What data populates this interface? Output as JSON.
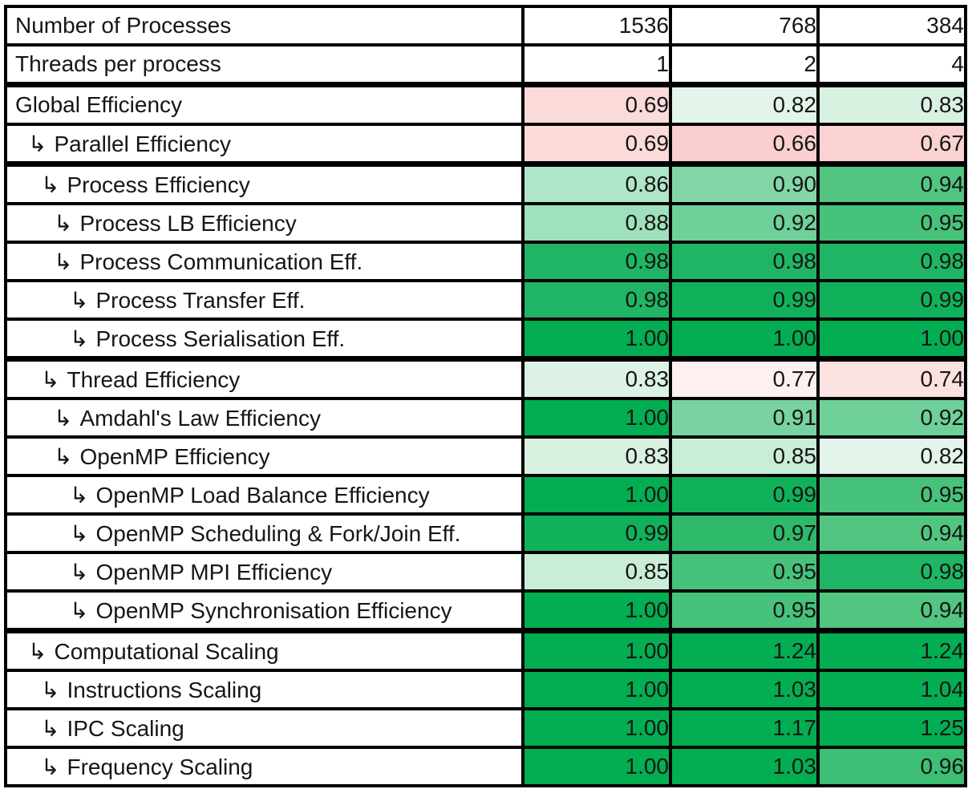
{
  "table": {
    "header_rows": [
      {
        "label": "Number of Processes",
        "values": [
          "1536",
          "768",
          "384"
        ]
      },
      {
        "label": "Threads per process",
        "values": [
          "1",
          "2",
          "4"
        ]
      }
    ],
    "arrow_glyph": "↳",
    "rows": [
      {
        "label": "Global Efficiency",
        "level": 0,
        "arrow": false,
        "blue": true,
        "thick_top": true,
        "values": [
          "0.69",
          "0.82",
          "0.83"
        ],
        "colors": [
          "#FBDADA",
          "#E3F4EA",
          "#D8F1E1"
        ]
      },
      {
        "label": "Parallel Efficiency",
        "level": 1,
        "arrow": true,
        "blue": false,
        "thick_top": false,
        "values": [
          "0.69",
          "0.66",
          "0.67"
        ],
        "colors": [
          "#FBDADA",
          "#FBCFCF",
          "#FBD2D2"
        ]
      },
      {
        "label": "Process Efficiency",
        "level": 2,
        "arrow": true,
        "blue": false,
        "thick_top": true,
        "values": [
          "0.86",
          "0.90",
          "0.94"
        ],
        "colors": [
          "#AFE5C8",
          "#83D7A6",
          "#52C581"
        ]
      },
      {
        "label": "Process LB Efficiency",
        "level": 3,
        "arrow": true,
        "blue": false,
        "thick_top": false,
        "values": [
          "0.88",
          "0.92",
          "0.95"
        ],
        "colors": [
          "#9FE0BD",
          "#6FD099",
          "#47C27B"
        ]
      },
      {
        "label": "Process Communication Eff.",
        "level": 3,
        "arrow": true,
        "blue": false,
        "thick_top": false,
        "values": [
          "0.98",
          "0.98",
          "0.98"
        ],
        "colors": [
          "#1FB564",
          "#1FB564",
          "#1FB564"
        ]
      },
      {
        "label": "Process Transfer Eff.",
        "level": 4,
        "arrow": true,
        "blue": false,
        "thick_top": false,
        "values": [
          "0.98",
          "0.99",
          "0.99"
        ],
        "colors": [
          "#1FB564",
          "#10B15A",
          "#10B15A"
        ]
      },
      {
        "label": "Process Serialisation Eff.",
        "level": 4,
        "arrow": true,
        "blue": false,
        "thick_top": false,
        "values": [
          "1.00",
          "1.00",
          "1.00"
        ],
        "colors": [
          "#02AE51",
          "#02AE51",
          "#02AE51"
        ]
      },
      {
        "label": "Thread Efficiency",
        "level": 2,
        "arrow": true,
        "blue": true,
        "thick_top": true,
        "values": [
          "0.83",
          "0.77",
          "0.74"
        ],
        "colors": [
          "#DCF2E4",
          "#FDF1F0",
          "#FBE1E0"
        ]
      },
      {
        "label": "Amdahl's Law Efficiency",
        "level": 3,
        "arrow": true,
        "blue": false,
        "thick_top": false,
        "values": [
          "1.00",
          "0.91",
          "0.92"
        ],
        "colors": [
          "#02AE51",
          "#79D3A0",
          "#6FD099"
        ]
      },
      {
        "label": "OpenMP Efficiency",
        "level": 3,
        "arrow": true,
        "blue": false,
        "thick_top": false,
        "values": [
          "0.83",
          "0.85",
          "0.82"
        ],
        "colors": [
          "#D8F1E1",
          "#C9EDD7",
          "#E3F4EA"
        ]
      },
      {
        "label": "OpenMP Load Balance Efficiency",
        "level": 4,
        "arrow": true,
        "blue": false,
        "thick_top": false,
        "values": [
          "1.00",
          "0.99",
          "0.95"
        ],
        "colors": [
          "#02AE51",
          "#10B15A",
          "#47C27B"
        ]
      },
      {
        "label": "OpenMP Scheduling & Fork/Join Eff.",
        "level": 4,
        "arrow": true,
        "blue": false,
        "thick_top": false,
        "values": [
          "0.99",
          "0.97",
          "0.94"
        ],
        "colors": [
          "#10B15A",
          "#2EB96B",
          "#52C581"
        ]
      },
      {
        "label": "OpenMP MPI Efficiency",
        "level": 4,
        "arrow": true,
        "blue": false,
        "thick_top": false,
        "values": [
          "0.85",
          "0.95",
          "0.98"
        ],
        "colors": [
          "#C9EDD7",
          "#47C27B",
          "#1FB564"
        ]
      },
      {
        "label": "OpenMP Synchronisation Efficiency",
        "level": 4,
        "arrow": true,
        "blue": false,
        "thick_top": false,
        "values": [
          "1.00",
          "0.95",
          "0.94"
        ],
        "colors": [
          "#02AE51",
          "#47C27B",
          "#52C581"
        ]
      },
      {
        "label": "Computational Scaling",
        "level": 1,
        "arrow": true,
        "blue": true,
        "thick_top": true,
        "values": [
          "1.00",
          "1.24",
          "1.24"
        ],
        "colors": [
          "#02AE51",
          "#02AE51",
          "#02AE51"
        ]
      },
      {
        "label": "Instructions Scaling",
        "level": 2,
        "arrow": true,
        "blue": false,
        "thick_top": false,
        "values": [
          "1.00",
          "1.03",
          "1.04"
        ],
        "colors": [
          "#02AE51",
          "#02AE51",
          "#02AE51"
        ]
      },
      {
        "label": "IPC Scaling",
        "level": 2,
        "arrow": true,
        "blue": false,
        "thick_top": false,
        "values": [
          "1.00",
          "1.17",
          "1.25"
        ],
        "colors": [
          "#02AE51",
          "#02AE51",
          "#02AE51"
        ]
      },
      {
        "label": "Frequency Scaling",
        "level": 2,
        "arrow": true,
        "blue": false,
        "thick_top": false,
        "values": [
          "1.00",
          "1.03",
          "0.96"
        ],
        "colors": [
          "#02AE51",
          "#02AE51",
          "#3CBE74"
        ]
      }
    ]
  },
  "colors": {
    "hierarchy_label_blue": "#4472C4",
    "border_black": "#000000",
    "deep_green_max": "#02AE51",
    "pink_low": "#FBCFCF",
    "background": "#FFFFFF"
  },
  "chart_data": {
    "type": "heatmap",
    "title": "",
    "column_headers": [
      {
        "label": "Number of Processes",
        "values": [
          1536,
          768,
          384
        ]
      },
      {
        "label": "Threads per process",
        "values": [
          1,
          2,
          4
        ]
      }
    ],
    "legend_position": "none",
    "grid": true,
    "color_scale": "red (low, <0.8) through white to green (high, 1.0+)",
    "metrics": [
      {
        "name": "Global Efficiency",
        "depth": 0,
        "values": [
          0.69,
          0.82,
          0.83
        ]
      },
      {
        "name": "Parallel Efficiency",
        "depth": 1,
        "values": [
          0.69,
          0.66,
          0.67
        ]
      },
      {
        "name": "Process Efficiency",
        "depth": 2,
        "values": [
          0.86,
          0.9,
          0.94
        ]
      },
      {
        "name": "Process LB Efficiency",
        "depth": 3,
        "values": [
          0.88,
          0.92,
          0.95
        ]
      },
      {
        "name": "Process Communication Eff.",
        "depth": 3,
        "values": [
          0.98,
          0.98,
          0.98
        ]
      },
      {
        "name": "Process Transfer Eff.",
        "depth": 4,
        "values": [
          0.98,
          0.99,
          0.99
        ]
      },
      {
        "name": "Process Serialisation Eff.",
        "depth": 4,
        "values": [
          1.0,
          1.0,
          1.0
        ]
      },
      {
        "name": "Thread Efficiency",
        "depth": 2,
        "values": [
          0.83,
          0.77,
          0.74
        ]
      },
      {
        "name": "Amdahl's Law Efficiency",
        "depth": 3,
        "values": [
          1.0,
          0.91,
          0.92
        ]
      },
      {
        "name": "OpenMP Efficiency",
        "depth": 3,
        "values": [
          0.83,
          0.85,
          0.82
        ]
      },
      {
        "name": "OpenMP Load Balance Efficiency",
        "depth": 4,
        "values": [
          1.0,
          0.99,
          0.95
        ]
      },
      {
        "name": "OpenMP Scheduling & Fork/Join Eff.",
        "depth": 4,
        "values": [
          0.99,
          0.97,
          0.94
        ]
      },
      {
        "name": "OpenMP MPI Efficiency",
        "depth": 4,
        "values": [
          0.85,
          0.95,
          0.98
        ]
      },
      {
        "name": "OpenMP Synchronisation Efficiency",
        "depth": 4,
        "values": [
          1.0,
          0.95,
          0.94
        ]
      },
      {
        "name": "Computational Scaling",
        "depth": 1,
        "values": [
          1.0,
          1.24,
          1.24
        ]
      },
      {
        "name": "Instructions Scaling",
        "depth": 2,
        "values": [
          1.0,
          1.03,
          1.04
        ]
      },
      {
        "name": "IPC Scaling",
        "depth": 2,
        "values": [
          1.0,
          1.17,
          1.25
        ]
      },
      {
        "name": "Frequency Scaling",
        "depth": 2,
        "values": [
          1.0,
          1.03,
          0.96
        ]
      }
    ]
  }
}
